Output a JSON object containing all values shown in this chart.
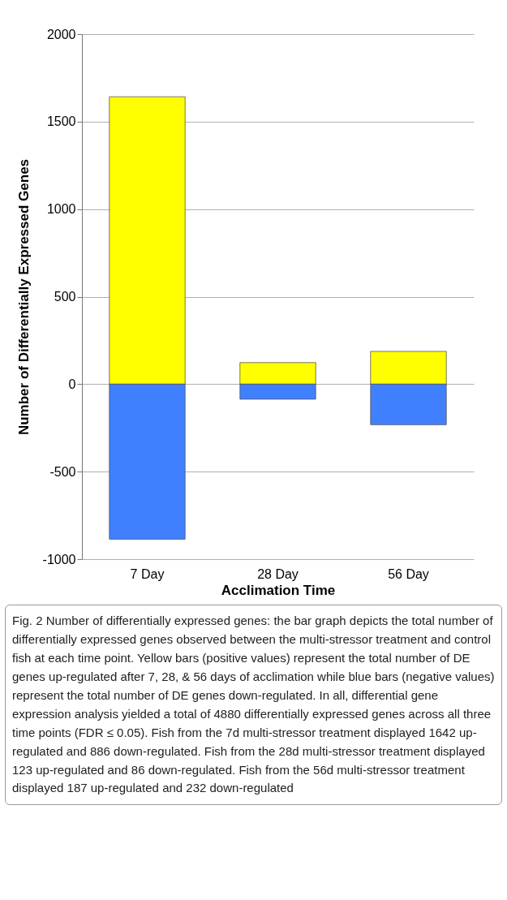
{
  "chart_data": {
    "type": "bar",
    "stacked": true,
    "xlabel": "Acclimation Time",
    "ylabel": "Number of Differentially Expressed Genes",
    "categories": [
      "7 Day",
      "28 Day",
      "56 Day"
    ],
    "series": [
      {
        "color": "#ffff00",
        "values": [
          1642,
          123,
          187
        ]
      },
      {
        "color": "#4080ff",
        "values": [
          -886,
          -86,
          -232
        ]
      }
    ],
    "ylim": [
      -1000,
      2000
    ],
    "yticks": [
      -1000,
      -500,
      0,
      500,
      1000,
      1500,
      2000
    ],
    "grid": "y",
    "annotations": [
      "Fig. 2 Number of differentially expressed genes: the bar graph depicts the total number of differentially expressed genes observed between the multi-stressor treatment and control fish at each time point. Yellow bars (positive values) represent the total number of DE genes up-regulated after 7, 28, & 56 days of acclimation while blue bars (negative values) represent the total number of DE genes down-regulated. In all, differential gene expression analysis yielded a total of 4880 differentially expressed genes across all three time points (FDR ≤ 0.05). Fish from the 7d multi-stressor treatment displayed 1642 up-regulated and 886 down-regulated. Fish from the 28d multi-stressor treatment displayed 123 up-regulated and 86 down-regulated. Fish from the 56d multi-stressor treatment displayed 187 up-regulated and 232 down-regulated"
    ]
  }
}
